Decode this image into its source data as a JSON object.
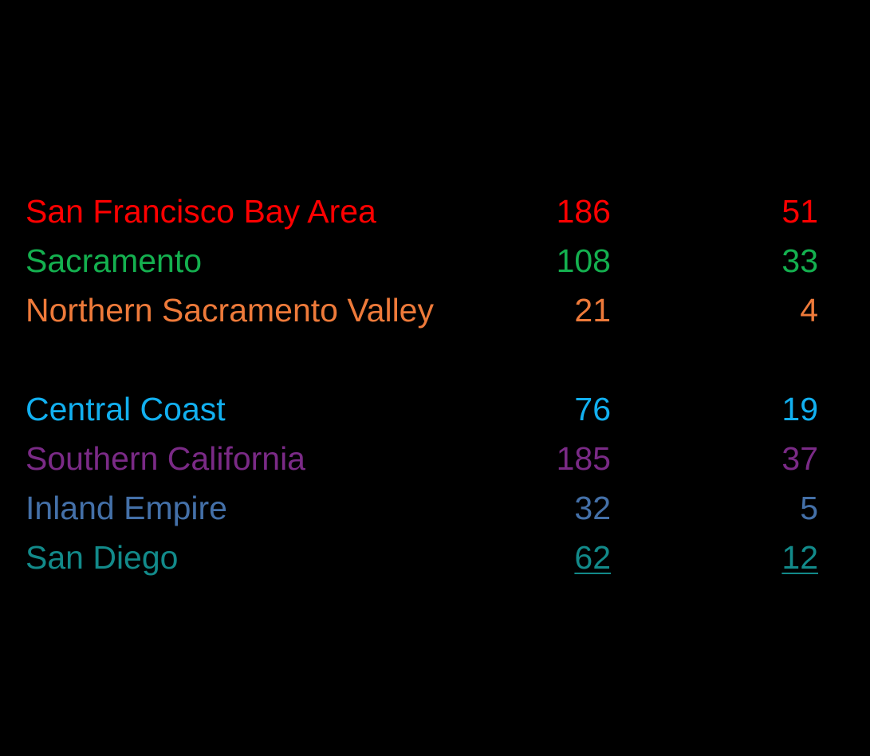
{
  "table": {
    "groups": [
      {
        "rows": [
          {
            "label": "San Francisco Bay Area",
            "v1": 186,
            "v2": 51,
            "color": "#ff0000"
          },
          {
            "label": "Sacramento",
            "v1": 108,
            "v2": 33,
            "color": "#14b04f"
          },
          {
            "label": "Northern Sacramento Valley",
            "v1": 21,
            "v2": 4,
            "color": "#ee7a3a"
          }
        ]
      },
      {
        "rows": [
          {
            "label": "Central Coast",
            "v1": 76,
            "v2": 19,
            "color": "#12b0f0"
          },
          {
            "label": "Southern California",
            "v1": 185,
            "v2": 37,
            "color": "#7a2a86"
          },
          {
            "label": "Inland Empire",
            "v1": 32,
            "v2": 5,
            "color": "#4470a8"
          },
          {
            "label": "San Diego",
            "v1": 62,
            "v2": 12,
            "color": "#128a8a"
          }
        ]
      }
    ]
  }
}
